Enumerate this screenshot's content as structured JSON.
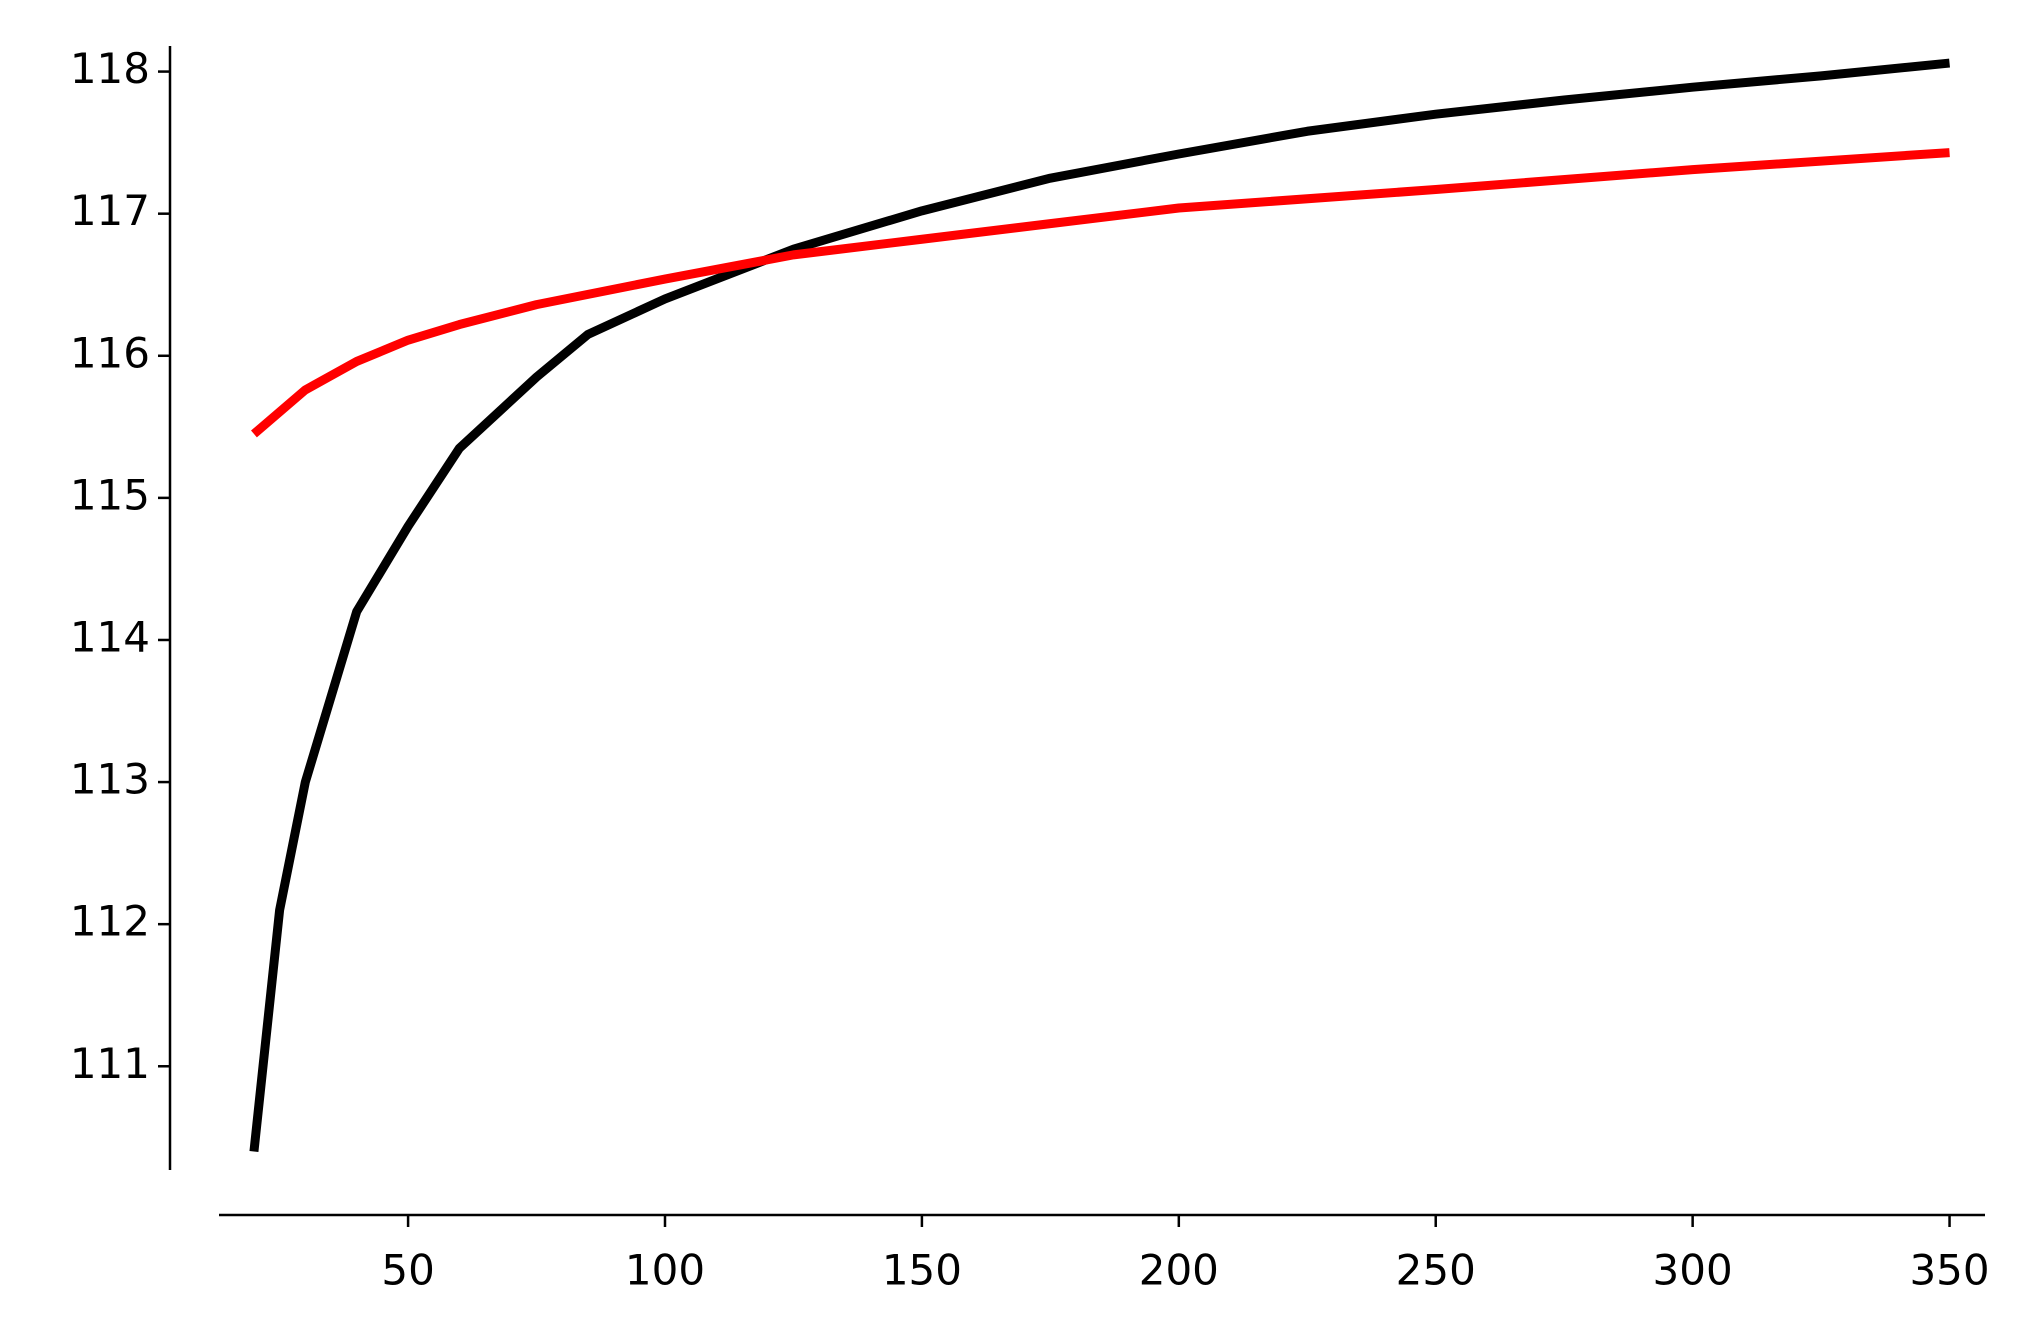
{
  "chart_data": {
    "type": "line",
    "series": [
      {
        "color": "#000000",
        "x": [
          20,
          25,
          30,
          40,
          50,
          60,
          75,
          85,
          100,
          125,
          150,
          175,
          200,
          225,
          250,
          275,
          300,
          325,
          350
        ],
        "values": [
          110.4,
          112.1,
          113.0,
          114.2,
          114.8,
          115.35,
          115.85,
          116.15,
          116.4,
          116.75,
          117.02,
          117.25,
          117.42,
          117.58,
          117.7,
          117.8,
          117.89,
          117.97,
          118.06
        ]
      },
      {
        "color": "#ff0000",
        "x": [
          20,
          30,
          40,
          50,
          60,
          75,
          100,
          125,
          150,
          175,
          200,
          250,
          300,
          350
        ],
        "values": [
          115.45,
          115.76,
          115.96,
          116.11,
          116.22,
          116.36,
          116.54,
          116.71,
          116.82,
          116.93,
          117.04,
          117.17,
          117.31,
          117.43
        ]
      }
    ],
    "xlim": [
      13.2,
      356.9
    ],
    "xticks": [
      50,
      100,
      150,
      200,
      250,
      300,
      350
    ],
    "ylim": [
      110.27,
      118.18
    ],
    "yticks": [
      111,
      112,
      113,
      114,
      115,
      116,
      117,
      118
    ]
  }
}
